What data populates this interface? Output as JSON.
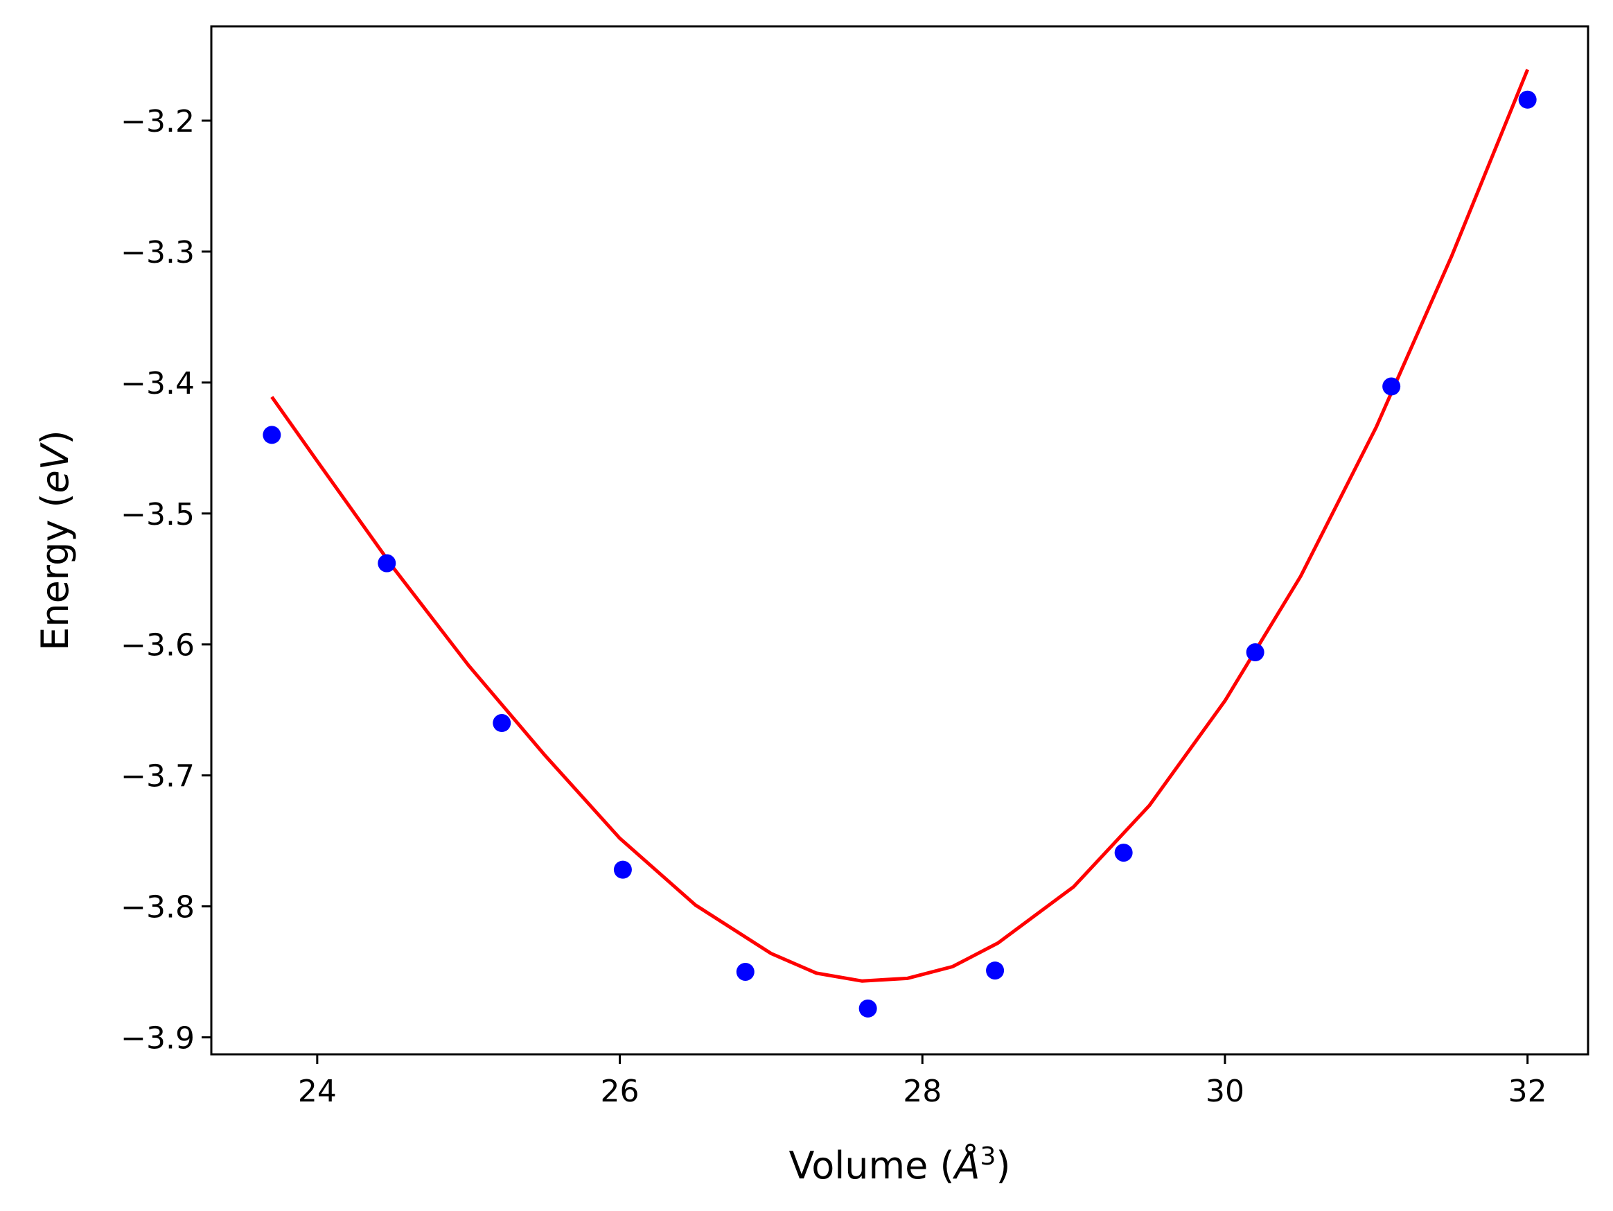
{
  "chart_data": {
    "type": "scatter",
    "xlabel_parts": [
      "Volume (",
      "Å",
      "3",
      ")"
    ],
    "ylabel_parts": [
      "Energy (",
      "eV",
      ")"
    ],
    "xlim": [
      23.3,
      32.4
    ],
    "ylim": [
      -3.913,
      -3.128
    ],
    "xticks": [
      24,
      26,
      28,
      30,
      32
    ],
    "xtick_labels": [
      "24",
      "26",
      "28",
      "30",
      "32"
    ],
    "yticks": [
      -3.9,
      -3.8,
      -3.7,
      -3.6,
      -3.5,
      -3.4,
      -3.3,
      -3.2
    ],
    "ytick_labels": [
      "−3.9",
      "−3.8",
      "−3.7",
      "−3.6",
      "−3.5",
      "−3.4",
      "−3.3",
      "−3.2"
    ],
    "grid": false,
    "series": [
      {
        "kind": "points",
        "color": "#0000ff",
        "x": [
          23.7,
          24.46,
          25.22,
          26.02,
          26.83,
          27.64,
          28.48,
          29.33,
          30.2,
          31.1,
          32.0
        ],
        "y": [
          -3.44,
          -3.538,
          -3.66,
          -3.772,
          -3.85,
          -3.878,
          -3.849,
          -3.759,
          -3.606,
          -3.403,
          -3.184
        ]
      },
      {
        "kind": "fit-curve",
        "color": "#ff0000",
        "x": [
          23.7,
          24.0,
          24.5,
          25.0,
          25.5,
          26.0,
          26.5,
          27.0,
          27.3,
          27.6,
          27.9,
          28.2,
          28.5,
          29.0,
          29.5,
          30.0,
          30.5,
          31.0,
          31.5,
          32.0
        ],
        "y": [
          -3.411,
          -3.46,
          -3.541,
          -3.616,
          -3.684,
          -3.748,
          -3.799,
          -3.836,
          -3.851,
          -3.857,
          -3.855,
          -3.846,
          -3.828,
          -3.785,
          -3.723,
          -3.643,
          -3.548,
          -3.434,
          -3.303,
          -3.161
        ]
      }
    ]
  }
}
